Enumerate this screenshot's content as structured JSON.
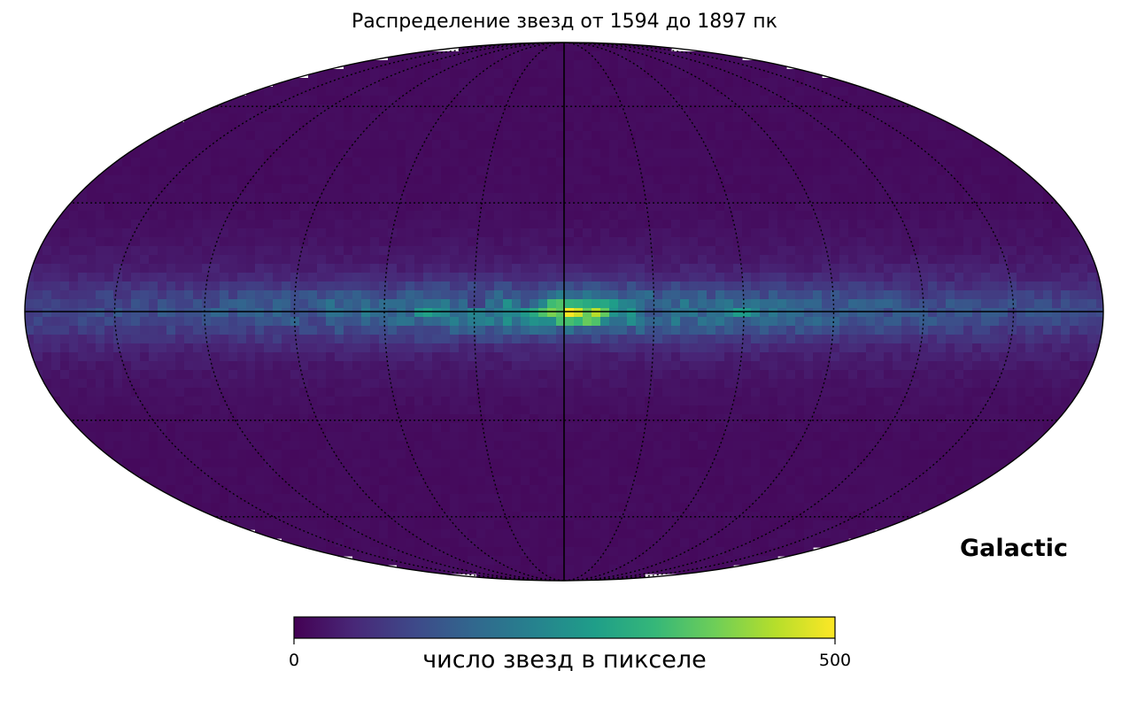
{
  "chart_data": {
    "type": "heatmap",
    "projection": "mollweide",
    "title": "Распределение звезд от 1594 до 1897 пк",
    "coordinate_system": "Galactic",
    "colormap": "viridis",
    "colorbar": {
      "label": "число звезд в пикселе",
      "min": 0,
      "max": 500,
      "ticks": [
        "0",
        "500"
      ],
      "colors": [
        "#440154",
        "#482878",
        "#3e4989",
        "#31688e",
        "#26828e",
        "#1f9e89",
        "#35b779",
        "#6ece58",
        "#b5de2b",
        "#fde725"
      ]
    },
    "graticule": {
      "meridian_step_deg": 30,
      "parallel_step_deg": 30,
      "central_lines": "solid",
      "other_lines": "dotted"
    },
    "grid": true,
    "approx_distribution": {
      "background_count": 15,
      "galactic_plane_count": 150,
      "plane_width_deg": 7,
      "central_bulge_peak": 340,
      "hotspots_lon_lat_value": [
        [
          -10,
          -1,
          350
        ],
        [
          -7,
          1,
          300
        ],
        [
          -3,
          1,
          260
        ],
        [
          0,
          0,
          280
        ],
        [
          8,
          -1,
          220
        ],
        [
          45,
          0,
          180
        ],
        [
          80,
          0,
          170
        ],
        [
          -60,
          0,
          150
        ]
      ],
      "dark_patches_lon_lat": [
        [
          81,
          -1
        ],
        [
          30,
          3
        ],
        [
          12,
          2
        ],
        [
          -30,
          0
        ]
      ]
    }
  }
}
